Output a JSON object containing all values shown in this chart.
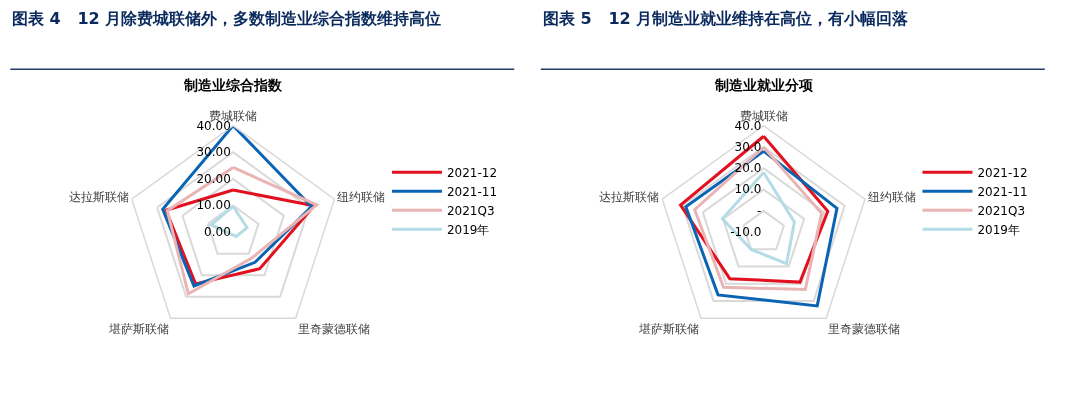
{
  "chart_data": [
    {
      "type": "radar",
      "title": "图表 4   12 月除费城联储外，多数制造业综合指数维持高位",
      "subtitle": "制造业综合指数",
      "categories": [
        "费城联储",
        "纽约联储",
        "里奇蒙德联储",
        "堪萨斯联储",
        "达拉斯联储"
      ],
      "series": [
        {
          "name": "2021-12",
          "color": "#e3101f",
          "values": [
            15.8,
            32,
            17,
            24,
            26.5
          ]
        },
        {
          "name": "2021-11",
          "color": "#0a64b4",
          "values": [
            40,
            31,
            14,
            25,
            27.8
          ]
        },
        {
          "name": "2021Q3",
          "color": "#e8b4b4",
          "values": [
            24.3,
            33,
            12,
            28.6,
            26
          ]
        },
        {
          "name": "2019年",
          "color": "#b4dce6",
          "values": [
            9.7,
            5.5,
            2,
            1,
            8.7
          ]
        }
      ],
      "ylim": [
        0,
        40
      ],
      "yticks": [
        {
          "value": 0,
          "label": "0.00"
        },
        {
          "value": 10,
          "label": "10.00"
        },
        {
          "value": 20,
          "label": "20.00"
        },
        {
          "value": 30,
          "label": "30.00"
        },
        {
          "value": 40,
          "label": "40.00"
        }
      ],
      "grid": true,
      "legend": "right"
    },
    {
      "type": "radar",
      "title": "图表 5   12 月制造业就业维持在高位，有小幅回落",
      "subtitle": "制造业就业分项",
      "categories": [
        "费城联储",
        "纽约联储",
        "里奇蒙德联储",
        "堪萨斯联储",
        "达拉斯联储"
      ],
      "series": [
        {
          "name": "2021-12",
          "color": "#e3101f",
          "values": [
            35,
            21.7,
            19,
            17,
            31
          ]
        },
        {
          "name": "2021-11",
          "color": "#0a64b4",
          "values": [
            28,
            26.2,
            32.8,
            26.4,
            28.4
          ]
        },
        {
          "name": "2021Q3",
          "color": "#e8b4b4",
          "values": [
            29.8,
            18.6,
            23.3,
            22,
            24
          ]
        },
        {
          "name": "2019年",
          "color": "#b4dce6",
          "values": [
            18,
            5.2,
            8.3,
            0,
            10.3
          ]
        }
      ],
      "ylim": [
        -10,
        40
      ],
      "yticks": [
        {
          "value": -10,
          "label": "-10.0"
        },
        {
          "value": 0,
          "label": "-"
        },
        {
          "value": 10,
          "label": "10.0"
        },
        {
          "value": 20,
          "label": "20.0"
        },
        {
          "value": 30,
          "label": "30.0"
        },
        {
          "value": 40,
          "label": "40.0"
        }
      ],
      "grid": true,
      "legend": "right"
    }
  ]
}
